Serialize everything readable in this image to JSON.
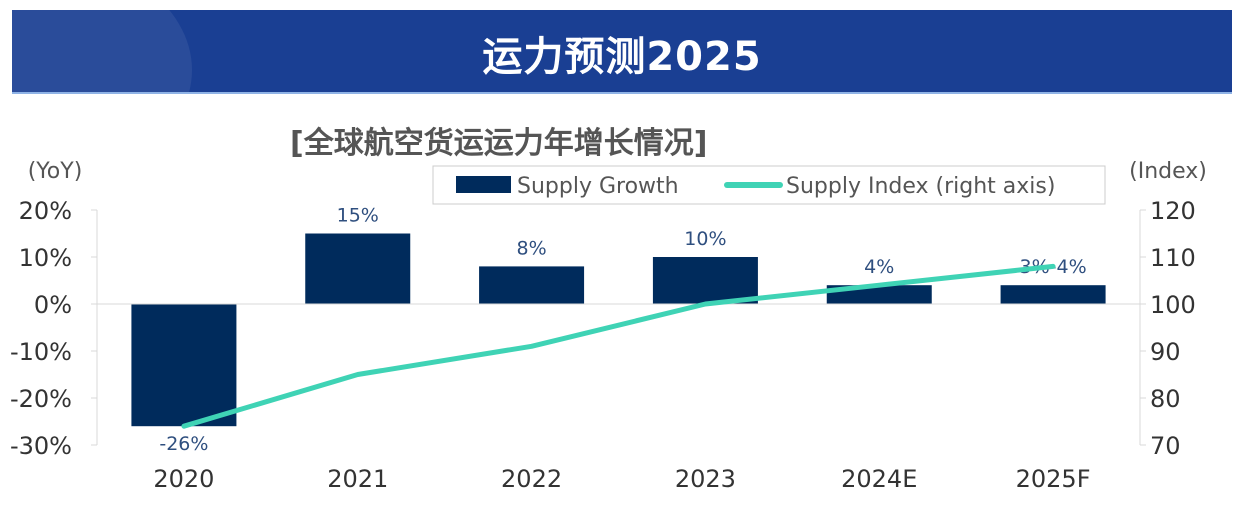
{
  "header": {
    "title": "运力预测2025"
  },
  "chart_data": {
    "type": "bar+line",
    "title": "[全球航空货运运力年增长情况]",
    "categories": [
      "2020",
      "2021",
      "2022",
      "2023",
      "2024E",
      "2025F"
    ],
    "left_axis": {
      "label": "(YoY)",
      "ylim": [
        -30,
        20
      ],
      "ticks": [
        "20%",
        "10%",
        "0%",
        "-10%",
        "-20%",
        "-30%"
      ]
    },
    "right_axis": {
      "label": "(Index)",
      "ylim": [
        70,
        120
      ],
      "ticks": [
        "120",
        "110",
        "100",
        "90",
        "80",
        "70"
      ]
    },
    "series": [
      {
        "name": "Supply Growth",
        "type": "bar",
        "axis": "left",
        "color": "#002b5c",
        "values": [
          -26,
          15,
          8,
          10,
          4,
          4
        ],
        "labels": [
          "-26%",
          "15%",
          "8%",
          "10%",
          "4%",
          "3%-4%"
        ]
      },
      {
        "name": "Supply Index (right axis)",
        "type": "line",
        "axis": "right",
        "color": "#3fd3b5",
        "values": [
          74,
          85,
          91,
          100,
          104,
          108
        ]
      }
    ],
    "legend": "top-right",
    "grid": false
  }
}
